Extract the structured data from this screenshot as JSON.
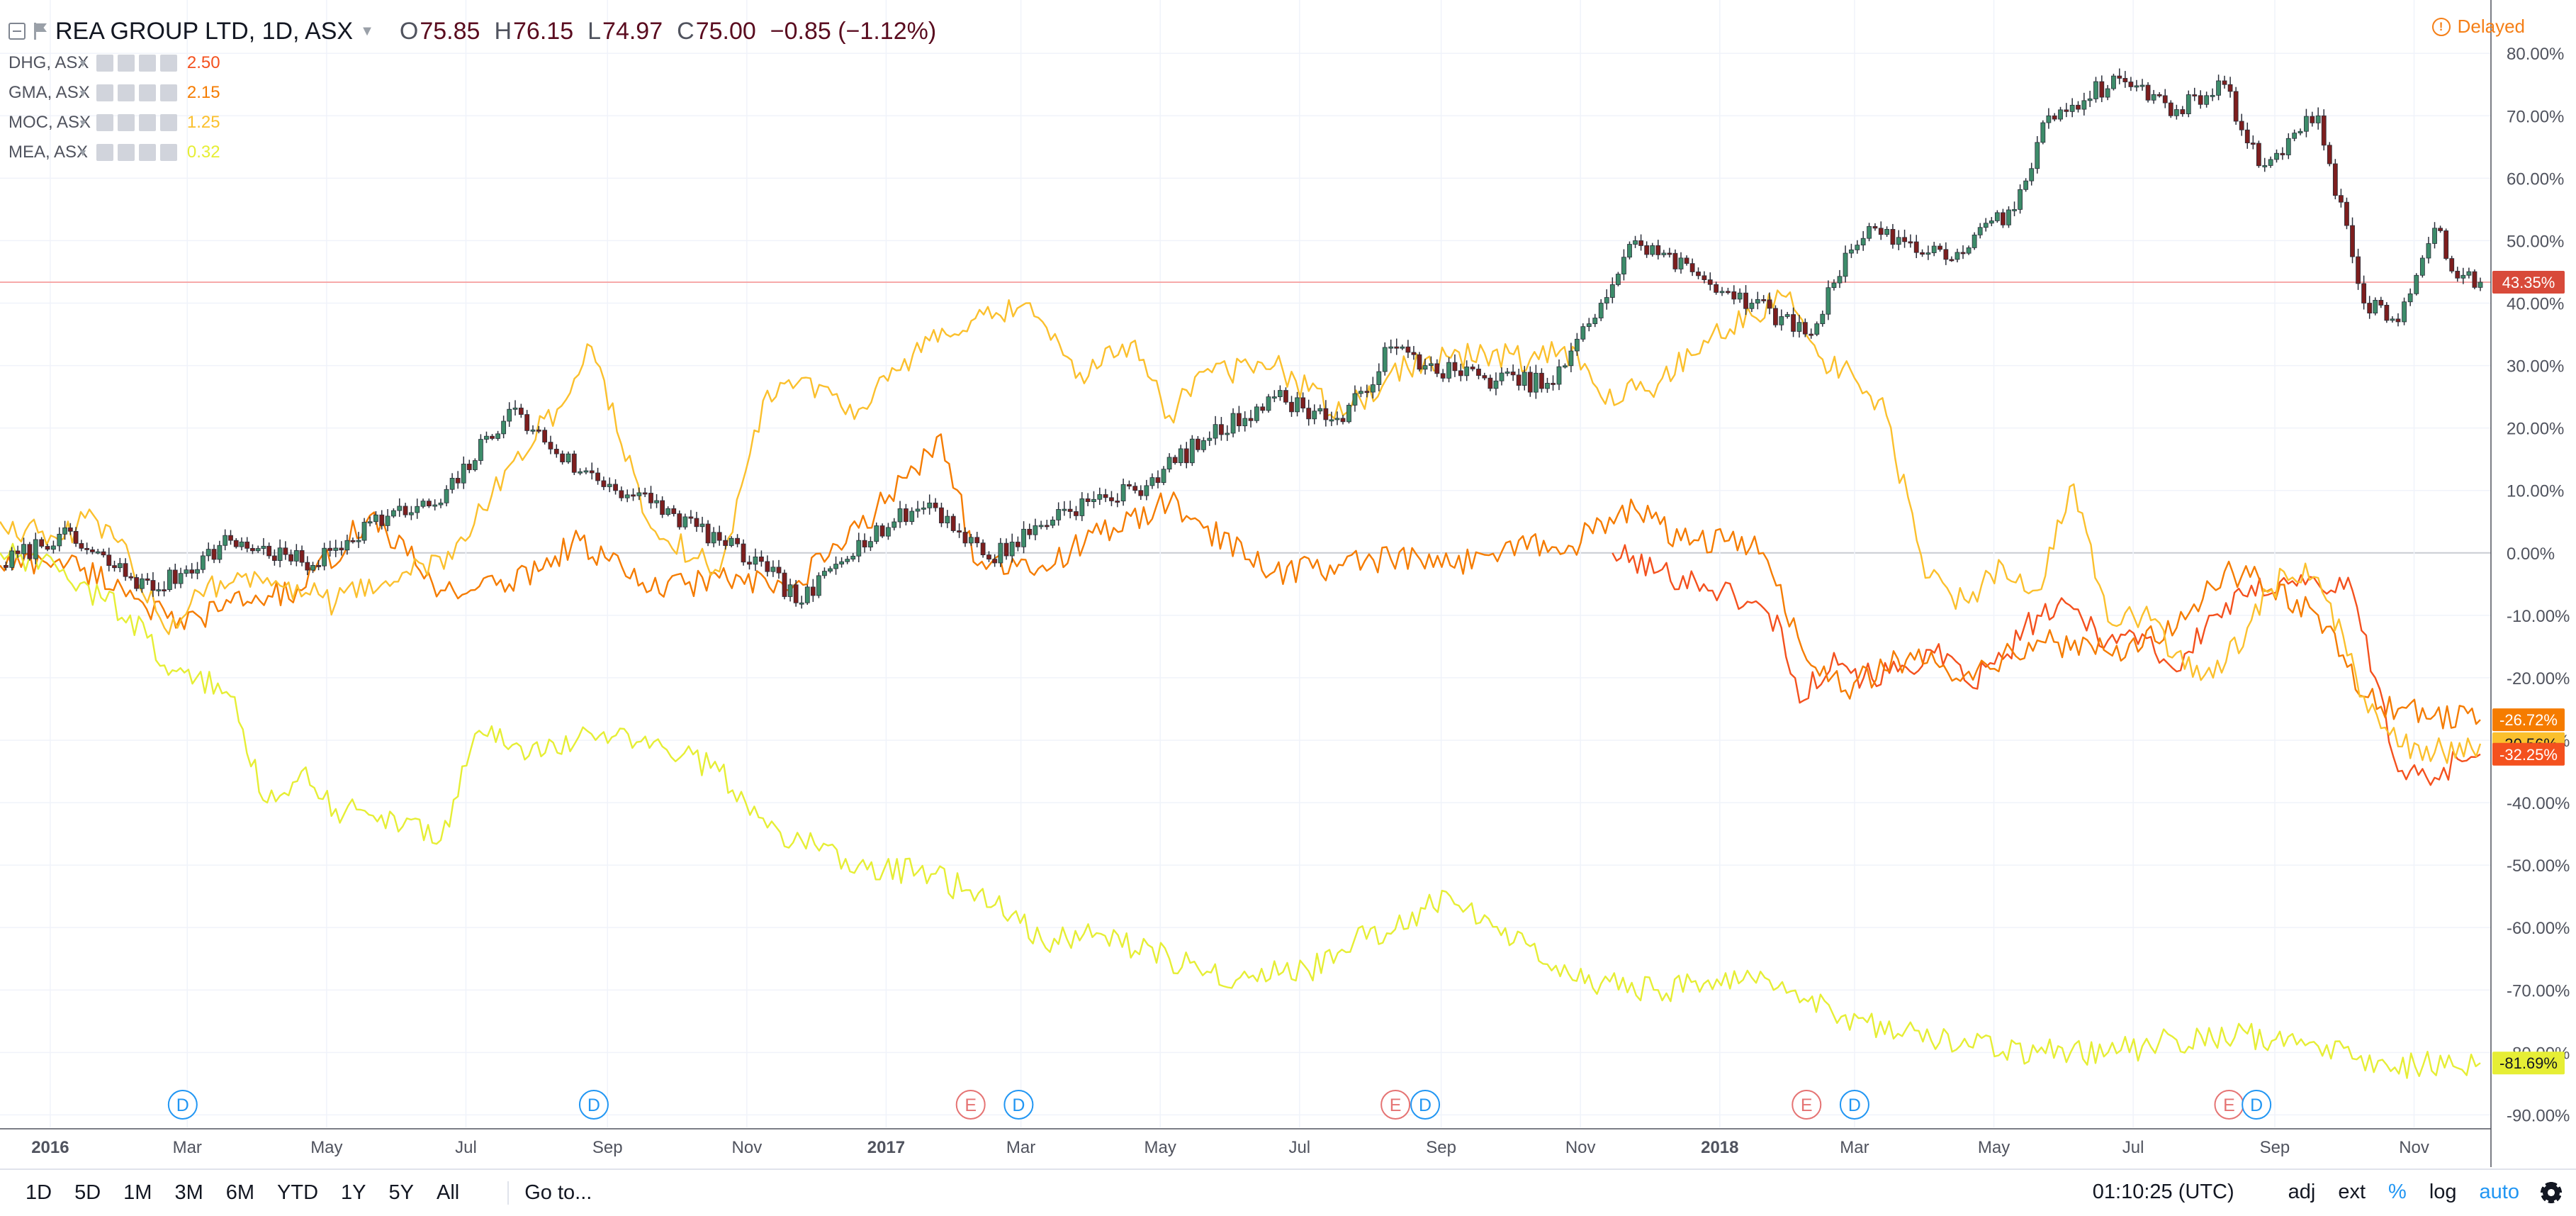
{
  "header": {
    "title": "REA GROUP LTD, 1D, ASX",
    "ohlc": [
      {
        "label": "O",
        "value": "75.85"
      },
      {
        "label": "H",
        "value": "76.15"
      },
      {
        "label": "L",
        "value": "74.97"
      },
      {
        "label": "C",
        "value": "75.00"
      }
    ],
    "change": "−0.85 (−1.12%)",
    "delayed_label": "Delayed"
  },
  "comparisons": [
    {
      "name": "DHG, ASX",
      "value": "2.50",
      "color": "#f4511e"
    },
    {
      "name": "GMA, ASX",
      "value": "2.15",
      "color": "#f57c00"
    },
    {
      "name": "MOC, ASX",
      "value": "1.25",
      "color": "#fbc02d"
    },
    {
      "name": "MEA, ASX",
      "value": "0.32",
      "color": "#e6ee35"
    }
  ],
  "colors": {
    "candle_up": "#3d8c6a",
    "candle_down": "#7d1e1e",
    "current_line": "#f7a9a9",
    "current_tag": "#d84a3a"
  },
  "chart_data": {
    "type": "line",
    "y_axis": {
      "scale": "percent",
      "ticks": [
        80,
        70,
        60,
        50,
        40,
        30,
        20,
        10,
        0,
        -10,
        -20,
        -30,
        -40,
        -50,
        -60,
        -70,
        -80,
        -90
      ],
      "tick_labels": [
        "80.00%",
        "70.00%",
        "60.00%",
        "50.00%",
        "40.00%",
        "30.00%",
        "20.00%",
        "10.00%",
        "0.00%",
        "-10.00%",
        "-20.00%",
        "-30.00%",
        "-40.00%",
        "-50.00%",
        "-60.00%",
        "-70.00%",
        "-80.00%",
        "-90.00%"
      ],
      "ylim": [
        -92,
        84
      ]
    },
    "x_axis": {
      "range": [
        "2015-12-10",
        "2018-11-30"
      ],
      "tick_labels": [
        {
          "date": "2016-01-01",
          "label": "2016",
          "bold": true
        },
        {
          "date": "2016-03-01",
          "label": "Mar"
        },
        {
          "date": "2016-05-01",
          "label": "May"
        },
        {
          "date": "2016-07-01",
          "label": "Jul"
        },
        {
          "date": "2016-09-01",
          "label": "Sep"
        },
        {
          "date": "2016-11-01",
          "label": "Nov"
        },
        {
          "date": "2017-01-01",
          "label": "2017",
          "bold": true
        },
        {
          "date": "2017-03-01",
          "label": "Mar"
        },
        {
          "date": "2017-05-01",
          "label": "May"
        },
        {
          "date": "2017-07-01",
          "label": "Jul"
        },
        {
          "date": "2017-09-01",
          "label": "Sep"
        },
        {
          "date": "2017-11-01",
          "label": "Nov"
        },
        {
          "date": "2018-01-01",
          "label": "2018",
          "bold": true
        },
        {
          "date": "2018-03-01",
          "label": "Mar"
        },
        {
          "date": "2018-05-01",
          "label": "May"
        },
        {
          "date": "2018-07-01",
          "label": "Jul"
        },
        {
          "date": "2018-09-01",
          "label": "Sep"
        },
        {
          "date": "2018-11-01",
          "label": "Nov"
        }
      ]
    },
    "main_series": {
      "name": "REA GROUP LTD",
      "type": "candlestick",
      "x": [
        "2015-12-10",
        "2016-01-05",
        "2016-02-15",
        "2016-03-20",
        "2016-04-25",
        "2016-05-20",
        "2016-06-20",
        "2016-07-20",
        "2016-08-20",
        "2016-09-20",
        "2016-10-20",
        "2016-11-10",
        "2016-11-25",
        "2016-12-20",
        "2017-01-20",
        "2017-02-15",
        "2017-03-20",
        "2017-04-20",
        "2017-05-20",
        "2017-06-20",
        "2017-07-20",
        "2017-08-10",
        "2017-08-25",
        "2017-09-20",
        "2017-10-20",
        "2017-11-10",
        "2017-11-25",
        "2017-12-20",
        "2018-01-15",
        "2018-02-10",
        "2018-02-25",
        "2018-03-10",
        "2018-04-10",
        "2018-05-10",
        "2018-05-25",
        "2018-06-25",
        "2018-07-20",
        "2018-08-10",
        "2018-08-25",
        "2018-09-20",
        "2018-10-10",
        "2018-10-25",
        "2018-11-10",
        "2018-11-20",
        "2018-11-30"
      ],
      "values": [
        -2,
        3,
        -6,
        2,
        -2,
        5,
        8,
        23,
        13,
        8,
        2,
        -3,
        -8,
        2,
        8,
        -1,
        7,
        10,
        18,
        25,
        21,
        33,
        30,
        28,
        27,
        40,
        50,
        45,
        40,
        35,
        48,
        52,
        47,
        55,
        70,
        76,
        71,
        75,
        62,
        70,
        40,
        37,
        52,
        44,
        43.35
      ]
    },
    "series": [
      {
        "name": "DHG, ASX",
        "color": "#f4511e",
        "x": [
          "2017-11-15",
          "2017-12-05",
          "2017-12-25",
          "2018-01-15",
          "2018-01-28",
          "2018-02-05",
          "2018-02-20",
          "2018-03-05",
          "2018-03-20",
          "2018-04-05",
          "2018-04-20",
          "2018-05-05",
          "2018-05-20",
          "2018-06-05",
          "2018-06-20",
          "2018-07-05",
          "2018-07-20",
          "2018-08-05",
          "2018-08-20",
          "2018-09-05",
          "2018-09-20",
          "2018-10-05",
          "2018-10-15",
          "2018-10-25",
          "2018-11-10",
          "2018-11-20",
          "2018-11-30"
        ],
        "values": [
          0,
          -3,
          -5,
          -8,
          -12,
          -24,
          -16,
          -20,
          -19,
          -16,
          -21,
          -17,
          -10,
          -9,
          -14,
          -13,
          -19,
          -10,
          -7,
          -4,
          -5,
          -6,
          -20,
          -35,
          -36,
          -33,
          -32.25
        ]
      },
      {
        "name": "GMA, ASX",
        "color": "#f57c00",
        "x": [
          "2015-12-10",
          "2016-01-05",
          "2016-02-05",
          "2016-02-25",
          "2016-03-20",
          "2016-04-20",
          "2016-05-20",
          "2016-06-20",
          "2016-07-20",
          "2016-08-20",
          "2016-09-20",
          "2016-10-20",
          "2016-11-20",
          "2016-12-20",
          "2017-01-10",
          "2017-01-25",
          "2017-02-10",
          "2017-03-05",
          "2017-04-05",
          "2017-05-05",
          "2017-05-20",
          "2017-06-20",
          "2017-07-20",
          "2017-08-10",
          "2017-09-05",
          "2017-10-05",
          "2017-10-25",
          "2017-11-10",
          "2017-11-25",
          "2017-12-15",
          "2018-01-05",
          "2018-01-20",
          "2018-02-10",
          "2018-02-25",
          "2018-03-20",
          "2018-04-20",
          "2018-05-20",
          "2018-06-20",
          "2018-07-20",
          "2018-08-10",
          "2018-08-25",
          "2018-09-20",
          "2018-10-10",
          "2018-10-25",
          "2018-11-10",
          "2018-11-30"
        ],
        "values": [
          -2,
          -1,
          -6,
          -12,
          -8,
          -6,
          6,
          -6,
          -5,
          2,
          -6,
          -4,
          -6,
          4,
          12,
          19,
          -2,
          -3,
          3,
          8,
          4,
          -3,
          -2,
          -1,
          -2,
          2,
          0,
          5,
          7,
          2,
          2,
          0,
          -18,
          -22,
          -17,
          -19,
          -14,
          -16,
          -12,
          -3,
          -4,
          -10,
          -23,
          -25,
          -26,
          -26.72
        ]
      },
      {
        "name": "MOC, ASX",
        "color": "#fbc02d",
        "x": [
          "2015-12-10",
          "2016-01-05",
          "2016-01-20",
          "2016-02-05",
          "2016-02-20",
          "2016-03-10",
          "2016-04-05",
          "2016-05-05",
          "2016-06-05",
          "2016-06-25",
          "2016-07-20",
          "2016-08-10",
          "2016-08-25",
          "2016-09-20",
          "2016-10-20",
          "2016-11-10",
          "2016-11-25",
          "2016-12-20",
          "2017-01-20",
          "2017-02-20",
          "2017-03-05",
          "2017-03-25",
          "2017-04-20",
          "2017-05-05",
          "2017-05-20",
          "2017-06-20",
          "2017-07-20",
          "2017-08-10",
          "2017-08-25",
          "2017-09-20",
          "2017-10-10",
          "2017-10-25",
          "2017-11-10",
          "2017-12-05",
          "2017-12-25",
          "2018-01-15",
          "2018-01-30",
          "2018-02-15",
          "2018-03-01",
          "2018-03-15",
          "2018-04-01",
          "2018-04-20",
          "2018-05-05",
          "2018-05-20",
          "2018-06-05",
          "2018-06-20",
          "2018-07-05",
          "2018-07-20",
          "2018-08-05",
          "2018-08-20",
          "2018-09-05",
          "2018-09-20",
          "2018-10-10",
          "2018-10-25",
          "2018-11-10",
          "2018-11-30"
        ],
        "values": [
          5,
          2,
          6,
          -1,
          -12,
          -5,
          -4,
          -8,
          -3,
          -1,
          14,
          23,
          33,
          4,
          -3,
          26,
          28,
          23,
          34,
          38,
          40,
          28,
          34,
          22,
          29,
          30,
          22,
          29,
          31,
          32,
          31,
          33,
          25,
          27,
          34,
          38,
          41,
          31,
          28,
          22,
          -4,
          -8,
          -2,
          -6,
          11,
          -11,
          -10,
          -16,
          -20,
          -12,
          -3,
          -4,
          -23,
          -31,
          -32,
          -30.56
        ]
      },
      {
        "name": "MEA, ASX",
        "color": "#e6ee35",
        "x": [
          "2015-12-10",
          "2016-01-05",
          "2016-02-05",
          "2016-02-20",
          "2016-03-05",
          "2016-03-20",
          "2016-04-05",
          "2016-04-20",
          "2016-05-05",
          "2016-05-25",
          "2016-06-20",
          "2016-07-05",
          "2016-07-25",
          "2016-08-10",
          "2016-08-25",
          "2016-09-10",
          "2016-09-25",
          "2016-10-20",
          "2016-11-10",
          "2016-11-25",
          "2016-12-20",
          "2017-01-15",
          "2017-02-05",
          "2017-02-25",
          "2017-03-10",
          "2017-04-05",
          "2017-05-05",
          "2017-06-05",
          "2017-07-05",
          "2017-07-25",
          "2017-08-10",
          "2017-08-25",
          "2017-09-05",
          "2017-09-20",
          "2017-10-10",
          "2017-10-25",
          "2017-11-10",
          "2017-12-05",
          "2017-12-25",
          "2018-01-15",
          "2018-02-05",
          "2018-02-25",
          "2018-03-20",
          "2018-04-20",
          "2018-05-20",
          "2018-06-20",
          "2018-07-05",
          "2018-07-20",
          "2018-08-05",
          "2018-08-20",
          "2018-09-05",
          "2018-09-20",
          "2018-10-05",
          "2018-10-20",
          "2018-11-05",
          "2018-11-20",
          "2018-11-30"
        ],
        "values": [
          0,
          -3,
          -10,
          -18,
          -20,
          -23,
          -40,
          -35,
          -41,
          -42,
          -46,
          -29,
          -31,
          -32,
          -29,
          -29,
          -31,
          -35,
          -44,
          -46,
          -50,
          -51,
          -54,
          -58,
          -62,
          -61,
          -65,
          -68,
          -67,
          -62,
          -61,
          -57,
          -55,
          -58,
          -63,
          -66,
          -69,
          -70,
          -69,
          -68,
          -72,
          -74,
          -77,
          -79,
          -80,
          -80,
          -79,
          -78,
          -78,
          -77,
          -79,
          -79,
          -81,
          -82,
          -82,
          -82.5,
          -81.69
        ]
      }
    ],
    "current_value": {
      "value": 43.35,
      "label": "43.35%"
    },
    "price_tags": [
      {
        "value": 43.35,
        "label": "43.35%",
        "bg": "#d84a3a",
        "fg": "#ffffff"
      },
      {
        "value": -26.72,
        "label": "-26.72%",
        "bg": "#f57c00",
        "fg": "#ffffff"
      },
      {
        "value": -30.56,
        "label": "-30.56%",
        "bg": "#fbc02d",
        "fg": "#131722"
      },
      {
        "value": -32.25,
        "label": "-32.25%",
        "bg": "#f4511e",
        "fg": "#ffffff"
      },
      {
        "value": -81.69,
        "label": "-81.69%",
        "bg": "#e6ee35",
        "fg": "#131722"
      }
    ],
    "events": [
      {
        "date": "2016-02-28",
        "letter": "D",
        "kind": "dividend",
        "color": "#2196f3"
      },
      {
        "date": "2016-08-26",
        "letter": "D",
        "kind": "dividend",
        "color": "#2196f3"
      },
      {
        "date": "2017-02-07",
        "letter": "E",
        "kind": "earnings",
        "color": "#e57373"
      },
      {
        "date": "2017-02-28",
        "letter": "D",
        "kind": "dividend",
        "color": "#2196f3"
      },
      {
        "date": "2017-08-12",
        "letter": "E",
        "kind": "earnings",
        "color": "#e57373"
      },
      {
        "date": "2017-08-25",
        "letter": "D",
        "kind": "dividend",
        "color": "#2196f3"
      },
      {
        "date": "2018-02-08",
        "letter": "E",
        "kind": "earnings",
        "color": "#e57373"
      },
      {
        "date": "2018-03-01",
        "letter": "D",
        "kind": "dividend",
        "color": "#2196f3"
      },
      {
        "date": "2018-08-12",
        "letter": "E",
        "kind": "earnings",
        "color": "#e57373"
      },
      {
        "date": "2018-08-24",
        "letter": "D",
        "kind": "dividend",
        "color": "#2196f3"
      }
    ],
    "grid": true,
    "legend": "top-left"
  },
  "bottom_bar": {
    "ranges": [
      "1D",
      "5D",
      "1M",
      "3M",
      "6M",
      "YTD",
      "1Y",
      "5Y",
      "All"
    ],
    "goto_label": "Go to...",
    "clock": "01:10:25 (UTC)",
    "tools": [
      {
        "label": "adj",
        "active": false
      },
      {
        "label": "ext",
        "active": false
      },
      {
        "label": "%",
        "active": true
      },
      {
        "label": "log",
        "active": false
      },
      {
        "label": "auto",
        "active": true
      }
    ],
    "settings_icon": "gear-icon"
  }
}
